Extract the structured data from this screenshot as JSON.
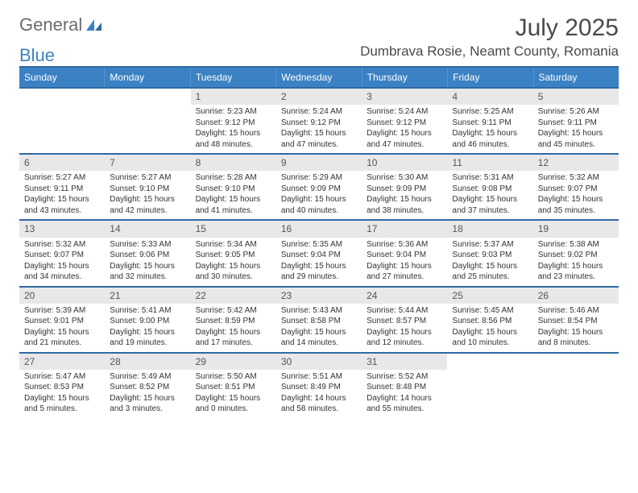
{
  "logo": {
    "word1": "General",
    "word2": "Blue"
  },
  "month_title": "July 2025",
  "location": "Dumbrava Rosie, Neamt County, Romania",
  "day_headers": [
    "Sunday",
    "Monday",
    "Tuesday",
    "Wednesday",
    "Thursday",
    "Friday",
    "Saturday"
  ],
  "colors": {
    "header_bg": "#3b82c4",
    "header_border": "#2f6aa3",
    "daynum_bg": "#e8e8e8",
    "text": "#4a4a4a"
  },
  "weeks": [
    [
      null,
      null,
      {
        "n": "1",
        "sr": "Sunrise: 5:23 AM",
        "ss": "Sunset: 9:12 PM",
        "d1": "Daylight: 15 hours",
        "d2": "and 48 minutes."
      },
      {
        "n": "2",
        "sr": "Sunrise: 5:24 AM",
        "ss": "Sunset: 9:12 PM",
        "d1": "Daylight: 15 hours",
        "d2": "and 47 minutes."
      },
      {
        "n": "3",
        "sr": "Sunrise: 5:24 AM",
        "ss": "Sunset: 9:12 PM",
        "d1": "Daylight: 15 hours",
        "d2": "and 47 minutes."
      },
      {
        "n": "4",
        "sr": "Sunrise: 5:25 AM",
        "ss": "Sunset: 9:11 PM",
        "d1": "Daylight: 15 hours",
        "d2": "and 46 minutes."
      },
      {
        "n": "5",
        "sr": "Sunrise: 5:26 AM",
        "ss": "Sunset: 9:11 PM",
        "d1": "Daylight: 15 hours",
        "d2": "and 45 minutes."
      }
    ],
    [
      {
        "n": "6",
        "sr": "Sunrise: 5:27 AM",
        "ss": "Sunset: 9:11 PM",
        "d1": "Daylight: 15 hours",
        "d2": "and 43 minutes."
      },
      {
        "n": "7",
        "sr": "Sunrise: 5:27 AM",
        "ss": "Sunset: 9:10 PM",
        "d1": "Daylight: 15 hours",
        "d2": "and 42 minutes."
      },
      {
        "n": "8",
        "sr": "Sunrise: 5:28 AM",
        "ss": "Sunset: 9:10 PM",
        "d1": "Daylight: 15 hours",
        "d2": "and 41 minutes."
      },
      {
        "n": "9",
        "sr": "Sunrise: 5:29 AM",
        "ss": "Sunset: 9:09 PM",
        "d1": "Daylight: 15 hours",
        "d2": "and 40 minutes."
      },
      {
        "n": "10",
        "sr": "Sunrise: 5:30 AM",
        "ss": "Sunset: 9:09 PM",
        "d1": "Daylight: 15 hours",
        "d2": "and 38 minutes."
      },
      {
        "n": "11",
        "sr": "Sunrise: 5:31 AM",
        "ss": "Sunset: 9:08 PM",
        "d1": "Daylight: 15 hours",
        "d2": "and 37 minutes."
      },
      {
        "n": "12",
        "sr": "Sunrise: 5:32 AM",
        "ss": "Sunset: 9:07 PM",
        "d1": "Daylight: 15 hours",
        "d2": "and 35 minutes."
      }
    ],
    [
      {
        "n": "13",
        "sr": "Sunrise: 5:32 AM",
        "ss": "Sunset: 9:07 PM",
        "d1": "Daylight: 15 hours",
        "d2": "and 34 minutes."
      },
      {
        "n": "14",
        "sr": "Sunrise: 5:33 AM",
        "ss": "Sunset: 9:06 PM",
        "d1": "Daylight: 15 hours",
        "d2": "and 32 minutes."
      },
      {
        "n": "15",
        "sr": "Sunrise: 5:34 AM",
        "ss": "Sunset: 9:05 PM",
        "d1": "Daylight: 15 hours",
        "d2": "and 30 minutes."
      },
      {
        "n": "16",
        "sr": "Sunrise: 5:35 AM",
        "ss": "Sunset: 9:04 PM",
        "d1": "Daylight: 15 hours",
        "d2": "and 29 minutes."
      },
      {
        "n": "17",
        "sr": "Sunrise: 5:36 AM",
        "ss": "Sunset: 9:04 PM",
        "d1": "Daylight: 15 hours",
        "d2": "and 27 minutes."
      },
      {
        "n": "18",
        "sr": "Sunrise: 5:37 AM",
        "ss": "Sunset: 9:03 PM",
        "d1": "Daylight: 15 hours",
        "d2": "and 25 minutes."
      },
      {
        "n": "19",
        "sr": "Sunrise: 5:38 AM",
        "ss": "Sunset: 9:02 PM",
        "d1": "Daylight: 15 hours",
        "d2": "and 23 minutes."
      }
    ],
    [
      {
        "n": "20",
        "sr": "Sunrise: 5:39 AM",
        "ss": "Sunset: 9:01 PM",
        "d1": "Daylight: 15 hours",
        "d2": "and 21 minutes."
      },
      {
        "n": "21",
        "sr": "Sunrise: 5:41 AM",
        "ss": "Sunset: 9:00 PM",
        "d1": "Daylight: 15 hours",
        "d2": "and 19 minutes."
      },
      {
        "n": "22",
        "sr": "Sunrise: 5:42 AM",
        "ss": "Sunset: 8:59 PM",
        "d1": "Daylight: 15 hours",
        "d2": "and 17 minutes."
      },
      {
        "n": "23",
        "sr": "Sunrise: 5:43 AM",
        "ss": "Sunset: 8:58 PM",
        "d1": "Daylight: 15 hours",
        "d2": "and 14 minutes."
      },
      {
        "n": "24",
        "sr": "Sunrise: 5:44 AM",
        "ss": "Sunset: 8:57 PM",
        "d1": "Daylight: 15 hours",
        "d2": "and 12 minutes."
      },
      {
        "n": "25",
        "sr": "Sunrise: 5:45 AM",
        "ss": "Sunset: 8:56 PM",
        "d1": "Daylight: 15 hours",
        "d2": "and 10 minutes."
      },
      {
        "n": "26",
        "sr": "Sunrise: 5:46 AM",
        "ss": "Sunset: 8:54 PM",
        "d1": "Daylight: 15 hours",
        "d2": "and 8 minutes."
      }
    ],
    [
      {
        "n": "27",
        "sr": "Sunrise: 5:47 AM",
        "ss": "Sunset: 8:53 PM",
        "d1": "Daylight: 15 hours",
        "d2": "and 5 minutes."
      },
      {
        "n": "28",
        "sr": "Sunrise: 5:49 AM",
        "ss": "Sunset: 8:52 PM",
        "d1": "Daylight: 15 hours",
        "d2": "and 3 minutes."
      },
      {
        "n": "29",
        "sr": "Sunrise: 5:50 AM",
        "ss": "Sunset: 8:51 PM",
        "d1": "Daylight: 15 hours",
        "d2": "and 0 minutes."
      },
      {
        "n": "30",
        "sr": "Sunrise: 5:51 AM",
        "ss": "Sunset: 8:49 PM",
        "d1": "Daylight: 14 hours",
        "d2": "and 58 minutes."
      },
      {
        "n": "31",
        "sr": "Sunrise: 5:52 AM",
        "ss": "Sunset: 8:48 PM",
        "d1": "Daylight: 14 hours",
        "d2": "and 55 minutes."
      },
      null,
      null
    ]
  ]
}
